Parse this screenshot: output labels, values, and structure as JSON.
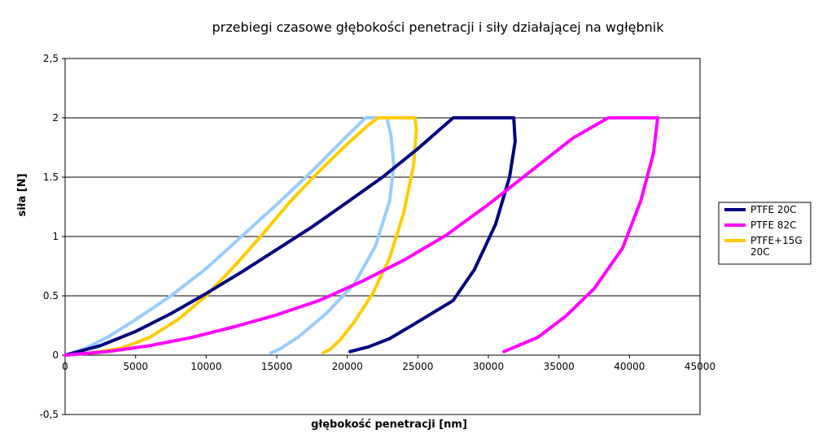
{
  "chart_data": {
    "type": "line",
    "title": "przebiegi czasowe głębokości penetracji i siły działającej na wgłębnik",
    "xlabel": "głębokość penetracji [nm]",
    "ylabel": "siła [N]",
    "xlim": [
      0,
      45000
    ],
    "ylim": [
      -0.5,
      2.5
    ],
    "x_ticks": [
      0,
      5000,
      10000,
      15000,
      20000,
      25000,
      30000,
      35000,
      40000,
      45000
    ],
    "x_tick_labels": [
      "0",
      "5000",
      "10000",
      "15000",
      "20000",
      "25000",
      "30000",
      "35000",
      "40000",
      "45000"
    ],
    "y_ticks": [
      -0.5,
      0,
      0.5,
      1,
      1.5,
      2,
      2.5
    ],
    "y_tick_labels": [
      "-0,5",
      "0",
      "0.5",
      "1",
      "1.5",
      "2",
      "2,5"
    ],
    "grid": "horizontal",
    "legend_position": "right",
    "series": [
      {
        "name": "",
        "color": "#99ccff",
        "points": [
          [
            0,
            0
          ],
          [
            1500,
            0.06
          ],
          [
            3000,
            0.15
          ],
          [
            5000,
            0.3
          ],
          [
            7500,
            0.5
          ],
          [
            10000,
            0.73
          ],
          [
            12500,
            1.0
          ],
          [
            15000,
            1.27
          ],
          [
            17500,
            1.55
          ],
          [
            20000,
            1.85
          ],
          [
            21300,
            2.0
          ],
          [
            22000,
            2.0
          ],
          [
            22800,
            2.0
          ],
          [
            23100,
            1.85
          ],
          [
            23300,
            1.6
          ],
          [
            23000,
            1.3
          ],
          [
            22000,
            0.92
          ],
          [
            20500,
            0.6
          ],
          [
            18500,
            0.35
          ],
          [
            16500,
            0.15
          ],
          [
            15200,
            0.05
          ],
          [
            14600,
            0.02
          ]
        ]
      },
      {
        "name": "",
        "color": "#ffcc00",
        "points": [
          [
            0,
            0
          ],
          [
            2000,
            0.02
          ],
          [
            4000,
            0.06
          ],
          [
            6000,
            0.15
          ],
          [
            8000,
            0.3
          ],
          [
            10000,
            0.5
          ],
          [
            12000,
            0.75
          ],
          [
            14000,
            1.02
          ],
          [
            16000,
            1.3
          ],
          [
            18000,
            1.55
          ],
          [
            20000,
            1.78
          ],
          [
            21500,
            1.94
          ],
          [
            22200,
            2.0
          ],
          [
            23500,
            2.0
          ],
          [
            24800,
            2.0
          ],
          [
            24900,
            1.9
          ],
          [
            24700,
            1.6
          ],
          [
            24000,
            1.2
          ],
          [
            23000,
            0.82
          ],
          [
            21800,
            0.52
          ],
          [
            20500,
            0.28
          ],
          [
            19500,
            0.13
          ],
          [
            18800,
            0.05
          ],
          [
            18300,
            0.02
          ]
        ]
      },
      {
        "name": "PTFE 20C",
        "color": "#000080",
        "points": [
          [
            0,
            0
          ],
          [
            2500,
            0.08
          ],
          [
            5000,
            0.2
          ],
          [
            7500,
            0.35
          ],
          [
            10000,
            0.52
          ],
          [
            12500,
            0.7
          ],
          [
            15000,
            0.89
          ],
          [
            17500,
            1.08
          ],
          [
            20000,
            1.29
          ],
          [
            22500,
            1.5
          ],
          [
            25000,
            1.74
          ],
          [
            27500,
            2.0
          ],
          [
            29500,
            2.0
          ],
          [
            31800,
            2.0
          ],
          [
            31900,
            1.8
          ],
          [
            31500,
            1.5
          ],
          [
            30500,
            1.1
          ],
          [
            29000,
            0.72
          ],
          [
            27500,
            0.46
          ],
          [
            25000,
            0.28
          ],
          [
            23000,
            0.14
          ],
          [
            21500,
            0.07
          ],
          [
            20200,
            0.03
          ]
        ]
      },
      {
        "name": "PTFE 82C",
        "color": "#ff00ff",
        "points": [
          [
            0,
            0
          ],
          [
            3000,
            0.03
          ],
          [
            6000,
            0.08
          ],
          [
            9000,
            0.15
          ],
          [
            12000,
            0.24
          ],
          [
            15000,
            0.34
          ],
          [
            18000,
            0.46
          ],
          [
            21000,
            0.62
          ],
          [
            24000,
            0.8
          ],
          [
            27000,
            1.01
          ],
          [
            30000,
            1.27
          ],
          [
            33000,
            1.55
          ],
          [
            36000,
            1.83
          ],
          [
            38500,
            2.0
          ],
          [
            40500,
            2.0
          ],
          [
            42000,
            2.0
          ],
          [
            41700,
            1.7
          ],
          [
            40800,
            1.3
          ],
          [
            39500,
            0.9
          ],
          [
            37500,
            0.56
          ],
          [
            35500,
            0.33
          ],
          [
            33500,
            0.15
          ],
          [
            31500,
            0.05
          ],
          [
            31100,
            0.03
          ]
        ]
      },
      {
        "name": "PTFE+15G 20C",
        "legend_lines": [
          "PTFE+15G",
          "20C"
        ],
        "color": "#ffcc00",
        "points": []
      }
    ]
  }
}
